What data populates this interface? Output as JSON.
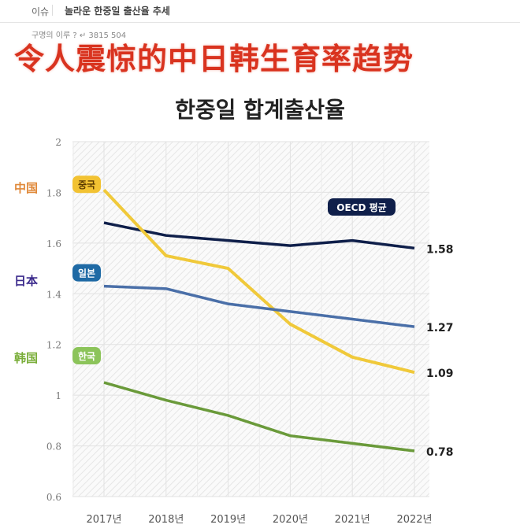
{
  "topbar": {
    "category": "이슈",
    "title": "놀라운 한중일 출산율 추세"
  },
  "subline": "구명의 이루   ?   ↵   3815   504",
  "headline": "令人震惊的中日韩生育率趋势",
  "side_labels": [
    {
      "text": "中国",
      "color": "#e0893a"
    },
    {
      "text": "日本",
      "color": "#3b2a8c"
    },
    {
      "text": "韩国",
      "color": "#7aae3a"
    }
  ],
  "chart_data": {
    "type": "line",
    "title": "한중일 합계출산율",
    "categories": [
      "2017년",
      "2018년",
      "2019년",
      "2020년",
      "2021년",
      "2022년"
    ],
    "ylim": [
      0.6,
      2
    ],
    "yticks": [
      "0.6",
      "0.8",
      "1",
      "1.2",
      "1.4",
      "1.6",
      "1.8",
      "2"
    ],
    "grid": true,
    "series": [
      {
        "name": "OECD 평균",
        "color": "#0f1f4a",
        "values": [
          1.68,
          1.63,
          1.61,
          1.59,
          1.61,
          1.58
        ],
        "end_label": "1.58"
      },
      {
        "name": "중국",
        "color": "#f0c93a",
        "values": [
          1.81,
          1.55,
          1.5,
          1.28,
          1.15,
          1.09
        ],
        "end_label": "1.09"
      },
      {
        "name": "일본",
        "color": "#4a6fa8",
        "values": [
          1.43,
          1.42,
          1.36,
          1.33,
          1.3,
          1.27
        ],
        "end_label": "1.27"
      },
      {
        "name": "한국",
        "color": "#6a9a3a",
        "values": [
          1.05,
          0.98,
          0.92,
          0.84,
          0.81,
          0.78
        ],
        "end_label": "0.78"
      }
    ],
    "badge_colors": {
      "OECD 평균": "#0f1f4a",
      "중국": "#f2c232",
      "일본": "#1f6aa5",
      "한국": "#8cc45a"
    }
  }
}
